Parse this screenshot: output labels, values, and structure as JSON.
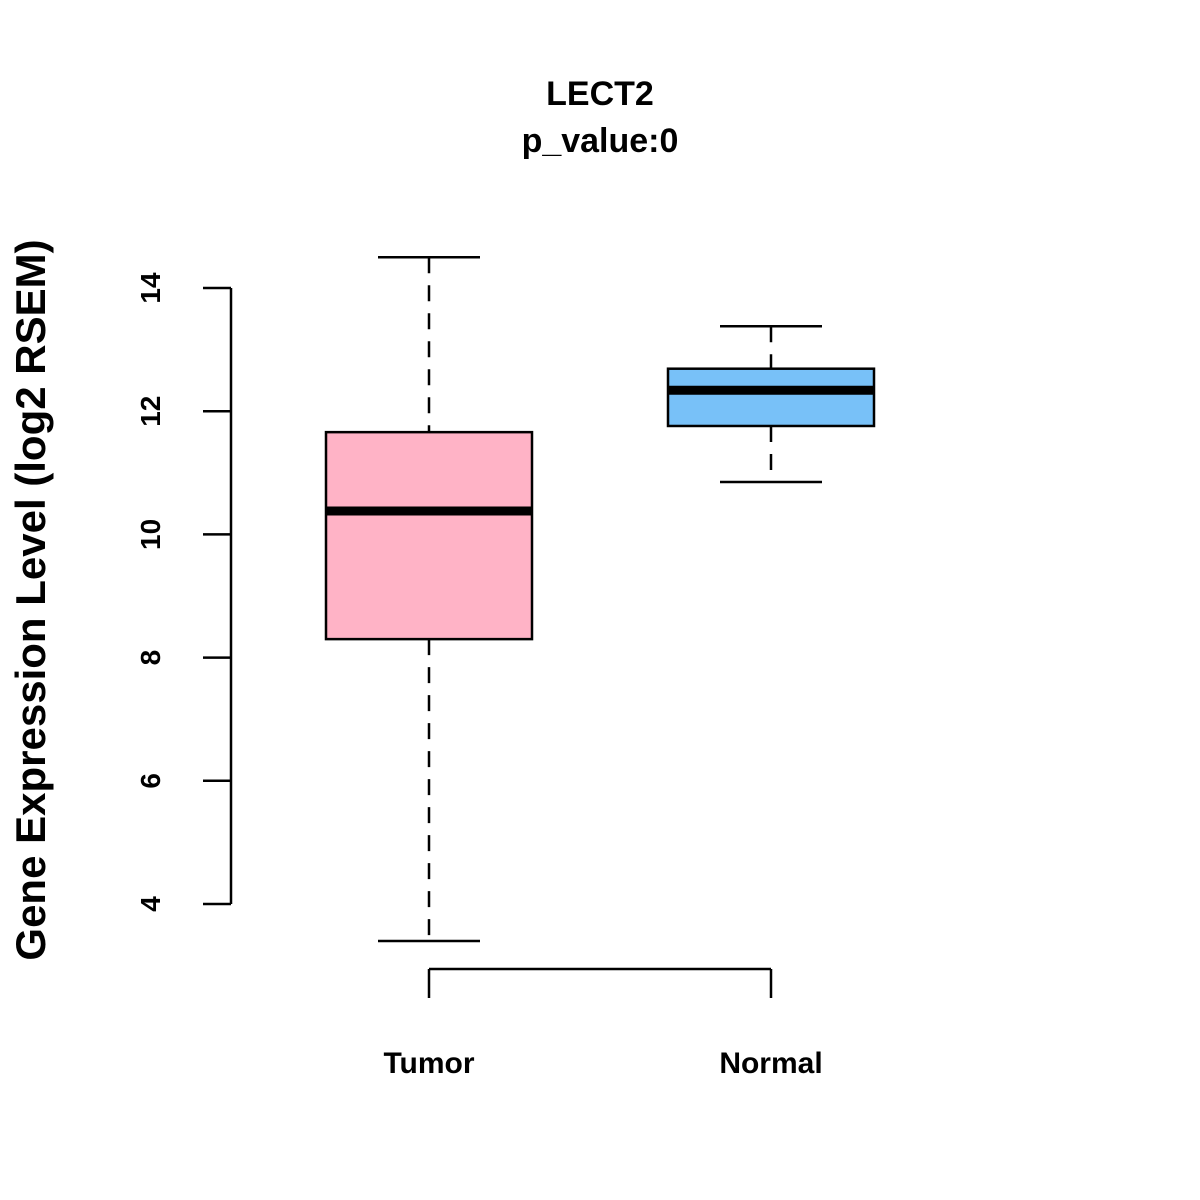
{
  "chart_data": {
    "type": "boxplot",
    "title": "LECT2",
    "subtitle": "p_value:0",
    "xlabel": "",
    "ylabel": "Gene Expression Level (log2 RSEM)",
    "ylim": [
      3.0,
      14.9
    ],
    "yticks": [
      4,
      6,
      8,
      10,
      12,
      14
    ],
    "grid": false,
    "categories": [
      "Tumor",
      "Normal"
    ],
    "series": [
      {
        "name": "Tumor",
        "color": "#FFB3C6",
        "whisker_low": 3.4,
        "q1": 8.3,
        "median": 10.38,
        "q3": 11.66,
        "whisker_high": 14.5
      },
      {
        "name": "Normal",
        "color": "#78C1F8",
        "whisker_low": 10.85,
        "q1": 11.76,
        "median": 12.34,
        "q3": 12.69,
        "whisker_high": 13.38
      }
    ]
  }
}
